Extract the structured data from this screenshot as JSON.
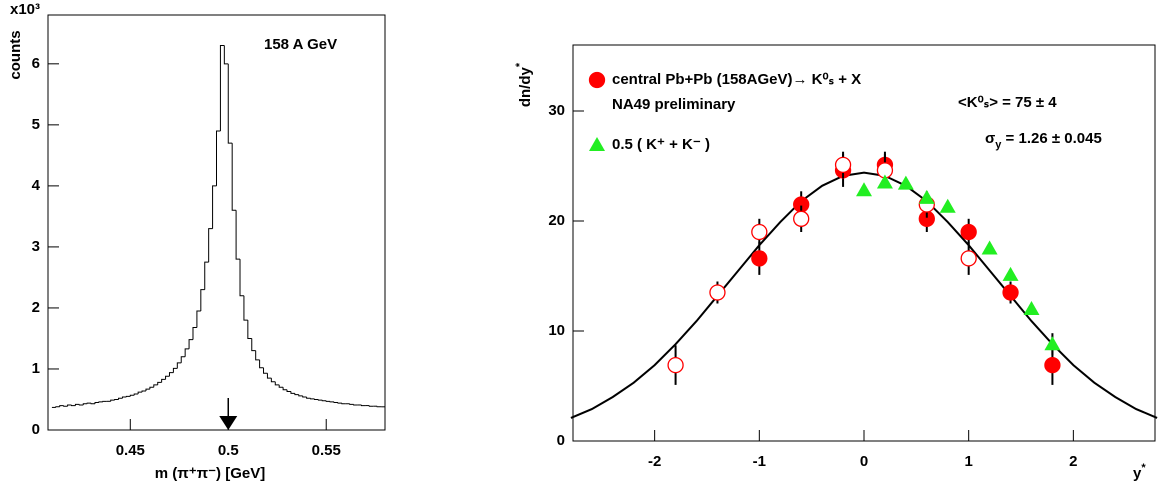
{
  "chart_data": [
    {
      "type": "histogram",
      "y_label": "counts",
      "y_multiplier": "x10³",
      "x_label": "m (π⁺π⁻) [GeV]",
      "annotation": "158 A GeV",
      "color": "#000000",
      "bins": [
        0.41,
        0.412,
        0.414,
        0.416,
        0.418,
        0.42,
        0.422,
        0.424,
        0.426,
        0.428,
        0.43,
        0.432,
        0.434,
        0.436,
        0.438,
        0.44,
        0.442,
        0.444,
        0.446,
        0.448,
        0.45,
        0.452,
        0.454,
        0.456,
        0.458,
        0.46,
        0.462,
        0.464,
        0.466,
        0.468,
        0.47,
        0.472,
        0.474,
        0.476,
        0.478,
        0.48,
        0.482,
        0.484,
        0.486,
        0.488,
        0.49,
        0.492,
        0.494,
        0.496,
        0.498,
        0.5,
        0.502,
        0.504,
        0.506,
        0.508,
        0.51,
        0.512,
        0.514,
        0.516,
        0.518,
        0.52,
        0.522,
        0.524,
        0.526,
        0.528,
        0.53,
        0.532,
        0.534,
        0.536,
        0.538,
        0.54,
        0.542,
        0.544,
        0.546,
        0.548,
        0.55,
        0.552,
        0.554,
        0.556,
        0.558,
        0.56,
        0.562,
        0.564,
        0.566,
        0.568,
        0.57,
        0.572,
        0.574,
        0.576,
        0.578,
        0.58
      ],
      "values": [
        0.37,
        0.38,
        0.4,
        0.39,
        0.41,
        0.4,
        0.42,
        0.41,
        0.43,
        0.44,
        0.43,
        0.45,
        0.46,
        0.47,
        0.47,
        0.49,
        0.5,
        0.52,
        0.54,
        0.55,
        0.57,
        0.59,
        0.62,
        0.64,
        0.67,
        0.7,
        0.74,
        0.78,
        0.83,
        0.88,
        0.94,
        1.01,
        1.1,
        1.2,
        1.33,
        1.48,
        1.68,
        1.95,
        2.3,
        2.75,
        3.3,
        4.0,
        4.9,
        6.3,
        6.0,
        4.7,
        3.6,
        2.8,
        2.2,
        1.8,
        1.5,
        1.3,
        1.15,
        1.02,
        0.93,
        0.85,
        0.79,
        0.74,
        0.7,
        0.66,
        0.63,
        0.6,
        0.58,
        0.56,
        0.54,
        0.52,
        0.51,
        0.5,
        0.49,
        0.48,
        0.47,
        0.46,
        0.45,
        0.44,
        0.43,
        0.43,
        0.42,
        0.41,
        0.41,
        0.4,
        0.4,
        0.39,
        0.39,
        0.38,
        0.38
      ],
      "xlim": [
        0.408,
        0.58
      ],
      "ylim": [
        0,
        6.8
      ],
      "xticks": [
        0.45,
        0.5,
        0.55
      ],
      "yticks": [
        0,
        1,
        2,
        3,
        4,
        5,
        6
      ],
      "marker_x": 0.5
    },
    {
      "type": "scatter",
      "x_label": [
        "y",
        "*"
      ],
      "y_label": [
        "dn/dy",
        "*"
      ],
      "annotations": [
        "NA49 preliminary",
        "<K⁰ₛ> = 75 ± 4",
        [
          "σ",
          "y",
          " = 1.26 ± 0.045"
        ]
      ],
      "series": [
        {
          "name": "central Pb+Pb (158AGeV)→ K⁰ₛ + X",
          "color": "#ff0000",
          "marker": "circle",
          "x": [
            -1.0,
            -0.6,
            -0.2,
            0.2,
            0.6,
            1.0,
            1.4,
            1.8
          ],
          "values": [
            16.6,
            21.5,
            24.6,
            25.1,
            20.2,
            19.0,
            13.5,
            6.9
          ],
          "errors": [
            1.5,
            1.2,
            1.5,
            1.2,
            1.2,
            1.2,
            1.0,
            1.8
          ]
        },
        {
          "color": "#ff0000",
          "marker": "open-circle",
          "x": [
            -1.8,
            -1.4,
            -1.0,
            -0.6,
            -0.2,
            0.2,
            0.6,
            1.0
          ],
          "values": [
            6.9,
            13.5,
            19.0,
            20.2,
            25.1,
            24.6,
            21.5,
            16.6
          ],
          "errors": [
            1.8,
            1.0,
            1.2,
            1.2,
            1.2,
            1.5,
            1.2,
            1.5
          ]
        },
        {
          "name": "0.5 ( K⁺ + K⁻ )",
          "color": "#22ee22",
          "marker": "triangle",
          "x": [
            0.0,
            0.2,
            0.4,
            0.6,
            0.8,
            1.2,
            1.4,
            1.6,
            1.8
          ],
          "values": [
            22.8,
            23.5,
            23.4,
            22.1,
            21.3,
            17.5,
            15.1,
            12.0,
            8.8
          ],
          "errors": [
            null,
            null,
            null,
            null,
            null,
            null,
            null,
            null,
            1.0
          ]
        }
      ],
      "fit": {
        "color": "#000000",
        "x": [
          -2.8,
          -2.6,
          -2.4,
          -2.2,
          -2.0,
          -1.8,
          -1.6,
          -1.4,
          -1.2,
          -1.0,
          -0.8,
          -0.6,
          -0.4,
          -0.2,
          0,
          0.2,
          0.4,
          0.6,
          0.8,
          1.0,
          1.2,
          1.4,
          1.6,
          1.8,
          2.0,
          2.2,
          2.4,
          2.6,
          2.8
        ],
        "values": [
          2.1,
          2.9,
          4.0,
          5.3,
          6.9,
          8.8,
          10.9,
          13.2,
          15.5,
          17.8,
          19.9,
          21.8,
          23.2,
          24.1,
          24.4,
          24.1,
          23.2,
          21.8,
          19.9,
          17.8,
          15.5,
          13.2,
          10.9,
          8.8,
          6.9,
          5.3,
          4.0,
          2.9,
          2.1
        ]
      },
      "xlim": [
        -2.78,
        2.78
      ],
      "ylim": [
        0,
        36
      ],
      "xticks": [
        -2,
        -1,
        0,
        1,
        2
      ],
      "yticks": [
        0,
        10,
        20,
        30
      ]
    }
  ]
}
